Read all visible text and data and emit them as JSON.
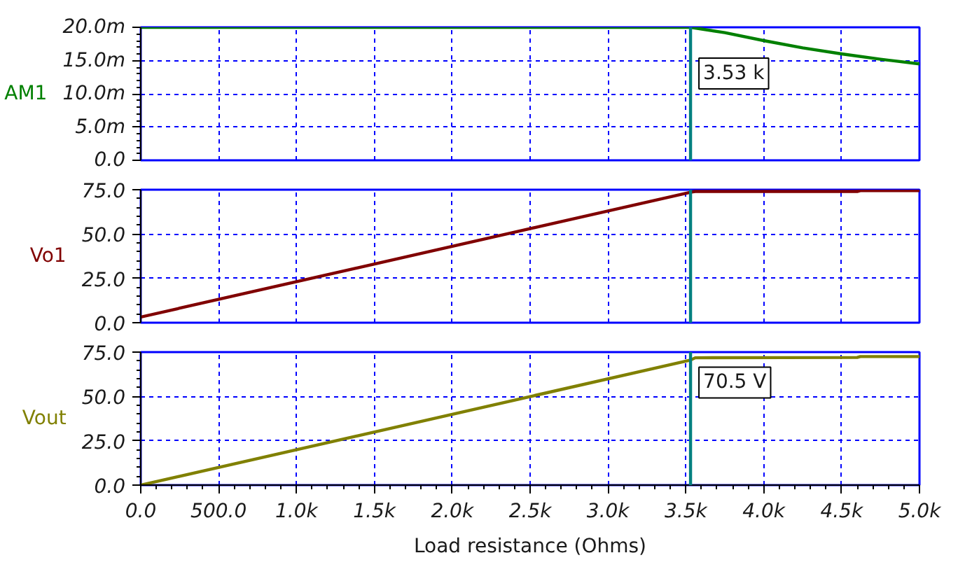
{
  "chart_data": [
    {
      "type": "line",
      "ylabel": "AM1",
      "x": [
        0,
        3530,
        3750,
        4000,
        4250,
        4500,
        4750,
        5000
      ],
      "series": [
        {
          "color": "#008000",
          "values": [
            20,
            20,
            19.2,
            18,
            16.9,
            16,
            15.2,
            14.5
          ]
        }
      ],
      "xlim": [
        0,
        5000
      ],
      "xticks": [
        0,
        500,
        1000,
        1500,
        2000,
        2500,
        3000,
        3500,
        4000,
        4500,
        5000
      ],
      "ylim": [
        0,
        20
      ],
      "yticks": [
        {
          "value": 0,
          "label": "0.0"
        },
        {
          "value": 1,
          "label": null
        },
        {
          "value": 2,
          "label": null
        },
        {
          "value": 3,
          "label": null
        },
        {
          "value": 4,
          "label": null
        },
        {
          "value": 5,
          "label": "5.0m"
        },
        {
          "value": 6,
          "label": null
        },
        {
          "value": 7,
          "label": null
        },
        {
          "value": 8,
          "label": null
        },
        {
          "value": 9,
          "label": null
        },
        {
          "value": 10,
          "label": "10.0m"
        },
        {
          "value": 11,
          "label": null
        },
        {
          "value": 12,
          "label": null
        },
        {
          "value": 13,
          "label": null
        },
        {
          "value": 14,
          "label": null
        },
        {
          "value": 15,
          "label": "15.0m"
        },
        {
          "value": 16,
          "label": null
        },
        {
          "value": 17,
          "label": null
        },
        {
          "value": 18,
          "label": null
        },
        {
          "value": 19,
          "label": null
        },
        {
          "value": 20,
          "label": "20.0m"
        }
      ],
      "grid": true,
      "tick_labels": "y",
      "ref_lines": [
        {
          "axis": "x",
          "value": 3530,
          "label": "3.53 k",
          "color": "#008080"
        }
      ]
    },
    {
      "type": "line",
      "ylabel": "Vo1",
      "x": [
        0,
        3530,
        3560,
        4600,
        4620,
        5000
      ],
      "series": [
        {
          "color": "#800000",
          "values": [
            3.2,
            73.6,
            74.0,
            74.0,
            74.5,
            74.5
          ]
        }
      ],
      "xlim": [
        0,
        5000
      ],
      "xticks": [
        0,
        500,
        1000,
        1500,
        2000,
        2500,
        3000,
        3500,
        4000,
        4500,
        5000
      ],
      "ylim": [
        0,
        75
      ],
      "yticks": [
        {
          "value": 0,
          "label": "0.0"
        },
        {
          "value": 5,
          "label": null
        },
        {
          "value": 10,
          "label": null
        },
        {
          "value": 15,
          "label": null
        },
        {
          "value": 20,
          "label": null
        },
        {
          "value": 25,
          "label": "25.0"
        },
        {
          "value": 30,
          "label": null
        },
        {
          "value": 35,
          "label": null
        },
        {
          "value": 40,
          "label": null
        },
        {
          "value": 45,
          "label": null
        },
        {
          "value": 50,
          "label": "50.0"
        },
        {
          "value": 55,
          "label": null
        },
        {
          "value": 60,
          "label": null
        },
        {
          "value": 65,
          "label": null
        },
        {
          "value": 70,
          "label": null
        },
        {
          "value": 75,
          "label": "75.0"
        }
      ],
      "grid": true,
      "tick_labels": "y",
      "ref_lines": [
        {
          "axis": "x",
          "value": 3530,
          "color": "#008080"
        }
      ]
    },
    {
      "type": "line",
      "ylabel": "Vout",
      "xlabel": "Load resistance (Ohms)",
      "x": [
        0,
        3530,
        3560,
        4600,
        4620,
        5000
      ],
      "series": [
        {
          "color": "#808000",
          "values": [
            0,
            70.5,
            71.8,
            72.0,
            72.5,
            72.5
          ]
        }
      ],
      "xlim": [
        0,
        5000
      ],
      "xticks": [
        {
          "value": 0,
          "label": "0.0"
        },
        {
          "value": 100,
          "label": null
        },
        {
          "value": 200,
          "label": null
        },
        {
          "value": 300,
          "label": null
        },
        {
          "value": 400,
          "label": null
        },
        {
          "value": 500,
          "label": "500.0"
        },
        {
          "value": 600,
          "label": null
        },
        {
          "value": 700,
          "label": null
        },
        {
          "value": 800,
          "label": null
        },
        {
          "value": 900,
          "label": null
        },
        {
          "value": 1000,
          "label": "1.0k"
        },
        {
          "value": 1100,
          "label": null
        },
        {
          "value": 1200,
          "label": null
        },
        {
          "value": 1300,
          "label": null
        },
        {
          "value": 1400,
          "label": null
        },
        {
          "value": 1500,
          "label": "1.5k"
        },
        {
          "value": 1600,
          "label": null
        },
        {
          "value": 1700,
          "label": null
        },
        {
          "value": 1800,
          "label": null
        },
        {
          "value": 1900,
          "label": null
        },
        {
          "value": 2000,
          "label": "2.0k"
        },
        {
          "value": 2100,
          "label": null
        },
        {
          "value": 2200,
          "label": null
        },
        {
          "value": 2300,
          "label": null
        },
        {
          "value": 2400,
          "label": null
        },
        {
          "value": 2500,
          "label": "2.5k"
        },
        {
          "value": 2600,
          "label": null
        },
        {
          "value": 2700,
          "label": null
        },
        {
          "value": 2800,
          "label": null
        },
        {
          "value": 2900,
          "label": null
        },
        {
          "value": 3000,
          "label": "3.0k"
        },
        {
          "value": 3100,
          "label": null
        },
        {
          "value": 3200,
          "label": null
        },
        {
          "value": 3300,
          "label": null
        },
        {
          "value": 3400,
          "label": null
        },
        {
          "value": 3500,
          "label": "3.5k"
        },
        {
          "value": 3600,
          "label": null
        },
        {
          "value": 3700,
          "label": null
        },
        {
          "value": 3800,
          "label": null
        },
        {
          "value": 3900,
          "label": null
        },
        {
          "value": 4000,
          "label": "4.0k"
        },
        {
          "value": 4100,
          "label": null
        },
        {
          "value": 4200,
          "label": null
        },
        {
          "value": 4300,
          "label": null
        },
        {
          "value": 4400,
          "label": null
        },
        {
          "value": 4500,
          "label": "4.5k"
        },
        {
          "value": 4600,
          "label": null
        },
        {
          "value": 4700,
          "label": null
        },
        {
          "value": 4800,
          "label": null
        },
        {
          "value": 4900,
          "label": null
        },
        {
          "value": 5000,
          "label": "5.0k"
        }
      ],
      "ylim": [
        0,
        75
      ],
      "yticks": [
        {
          "value": 0,
          "label": "0.0"
        },
        {
          "value": 5,
          "label": null
        },
        {
          "value": 10,
          "label": null
        },
        {
          "value": 15,
          "label": null
        },
        {
          "value": 20,
          "label": null
        },
        {
          "value": 25,
          "label": "25.0"
        },
        {
          "value": 30,
          "label": null
        },
        {
          "value": 35,
          "label": null
        },
        {
          "value": 40,
          "label": null
        },
        {
          "value": 45,
          "label": null
        },
        {
          "value": 50,
          "label": "50.0"
        },
        {
          "value": 55,
          "label": null
        },
        {
          "value": 60,
          "label": null
        },
        {
          "value": 65,
          "label": null
        },
        {
          "value": 70,
          "label": null
        },
        {
          "value": 75,
          "label": "75.0"
        }
      ],
      "grid": true,
      "ref_lines": [
        {
          "axis": "x",
          "value": 3530,
          "color": "#008080"
        }
      ],
      "annotations": [
        {
          "text": "70.5 V",
          "x": 3530,
          "y": 70.5
        }
      ]
    }
  ]
}
